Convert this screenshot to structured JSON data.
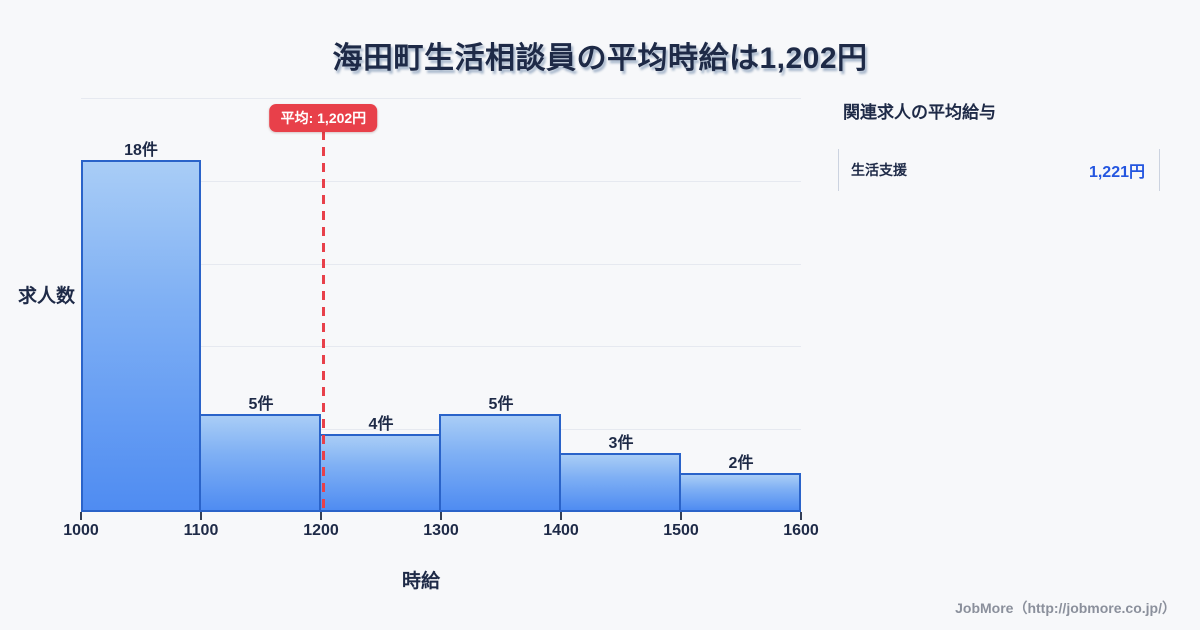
{
  "title": "海田町生活相談員の平均時給は1,202円",
  "chart_data": {
    "type": "bar",
    "histogram": true,
    "title": "海田町生活相談員の平均時給は1,202円",
    "xlabel": "時給",
    "ylabel": "求人数",
    "bin_edges": [
      1000,
      1100,
      1200,
      1300,
      1400,
      1500,
      1600
    ],
    "categories": [
      "1000-1100",
      "1100-1200",
      "1200-1300",
      "1300-1400",
      "1400-1500",
      "1500-1600"
    ],
    "values": [
      18,
      5,
      4,
      5,
      3,
      2
    ],
    "bar_labels": [
      "18件",
      "5件",
      "4件",
      "5件",
      "3件",
      "2件"
    ],
    "x_tick_labels": [
      "1000",
      "1100",
      "1200",
      "1300",
      "1400",
      "1500",
      "1600"
    ],
    "xlim": [
      1000,
      1600
    ],
    "ylim": [
      0,
      21.2
    ],
    "grid": "horizontal",
    "gridline_count": 5,
    "mean_value": 1202,
    "mean_label": "平均: 1,202円",
    "colors": {
      "bar_fill_top": "#a9cdf6",
      "bar_fill_bottom": "#4f8cf2",
      "bar_border": "#2a63c9",
      "mean_line": "#e8404a",
      "grid": "#e6e9f0",
      "title_text": "#1e2a47",
      "value_blue": "#2456e0",
      "background": "#f7f8fa"
    }
  },
  "side_panel": {
    "heading": "関連求人の平均給与",
    "rows": [
      {
        "label": "生活支援",
        "value": "1,221円"
      }
    ]
  },
  "footer": {
    "credit": "JobMore（http://jobmore.co.jp/）"
  }
}
